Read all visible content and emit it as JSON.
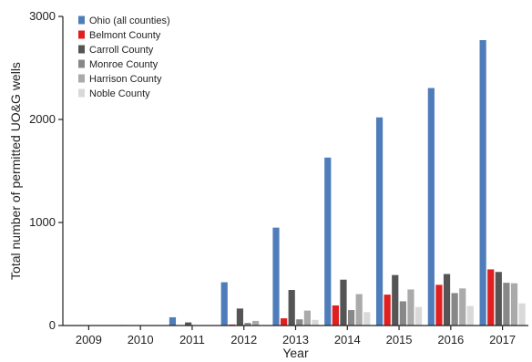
{
  "chart_data": {
    "type": "bar",
    "xlabel": "Year",
    "ylabel": "Total number of permitted UO&G wells",
    "ylim": [
      0,
      3000
    ],
    "yticks": [
      0,
      1000,
      2000,
      3000
    ],
    "categories": [
      "2009",
      "2010",
      "2011",
      "2012",
      "2013",
      "2014",
      "2015",
      "2016",
      "2017"
    ],
    "legend_position": "top-left",
    "grid": false,
    "series": [
      {
        "name": "Ohio (all counties)",
        "color": "#4f7dba",
        "values": [
          0,
          5,
          80,
          420,
          950,
          1630,
          2020,
          2305,
          2770
        ]
      },
      {
        "name": "Belmont County",
        "color": "#e02020",
        "values": [
          0,
          0,
          0,
          10,
          70,
          195,
          300,
          395,
          545
        ]
      },
      {
        "name": "Carroll County",
        "color": "#555555",
        "values": [
          0,
          2,
          30,
          165,
          345,
          445,
          490,
          500,
          520
        ]
      },
      {
        "name": "Monroe County",
        "color": "#888888",
        "values": [
          0,
          0,
          0,
          25,
          60,
          150,
          235,
          315,
          415
        ]
      },
      {
        "name": "Harrison County",
        "color": "#aaaaaa",
        "values": [
          0,
          0,
          0,
          45,
          145,
          305,
          350,
          360,
          410
        ]
      },
      {
        "name": "Noble County",
        "color": "#d9d9d9",
        "values": [
          0,
          0,
          0,
          0,
          55,
          130,
          180,
          190,
          215
        ]
      }
    ]
  }
}
